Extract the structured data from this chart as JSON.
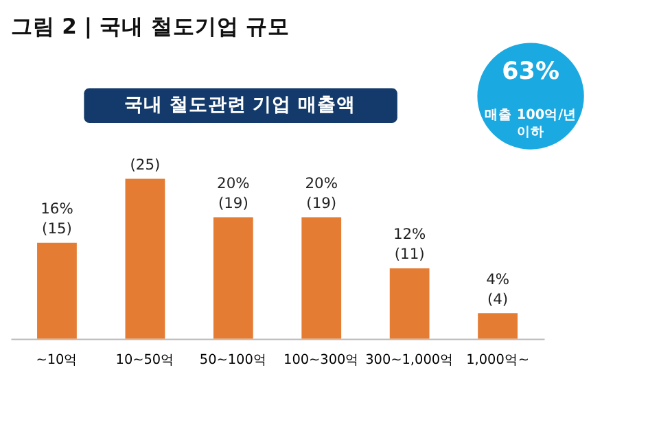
{
  "chart_data": {
    "type": "bar",
    "title": "그림 2 | 국내 철도기업 규모",
    "subtitle": "국내 철도관련 기업 매출액",
    "categories": [
      "~10억",
      "10~50억",
      "50~100억",
      "100~300억",
      "300~1,000억",
      "1,000억~"
    ],
    "values": [
      15,
      25,
      19,
      19,
      11,
      4
    ],
    "color": "#e47c33",
    "value_labels": [
      "16%\n(15)",
      "(25)",
      "20%\n(19)",
      "20%\n(19)",
      "12%\n(11)",
      "4%\n(4)"
    ],
    "annotations": [
      "63%",
      "매출 100억/년 이하"
    ],
    "grid": false
  }
}
